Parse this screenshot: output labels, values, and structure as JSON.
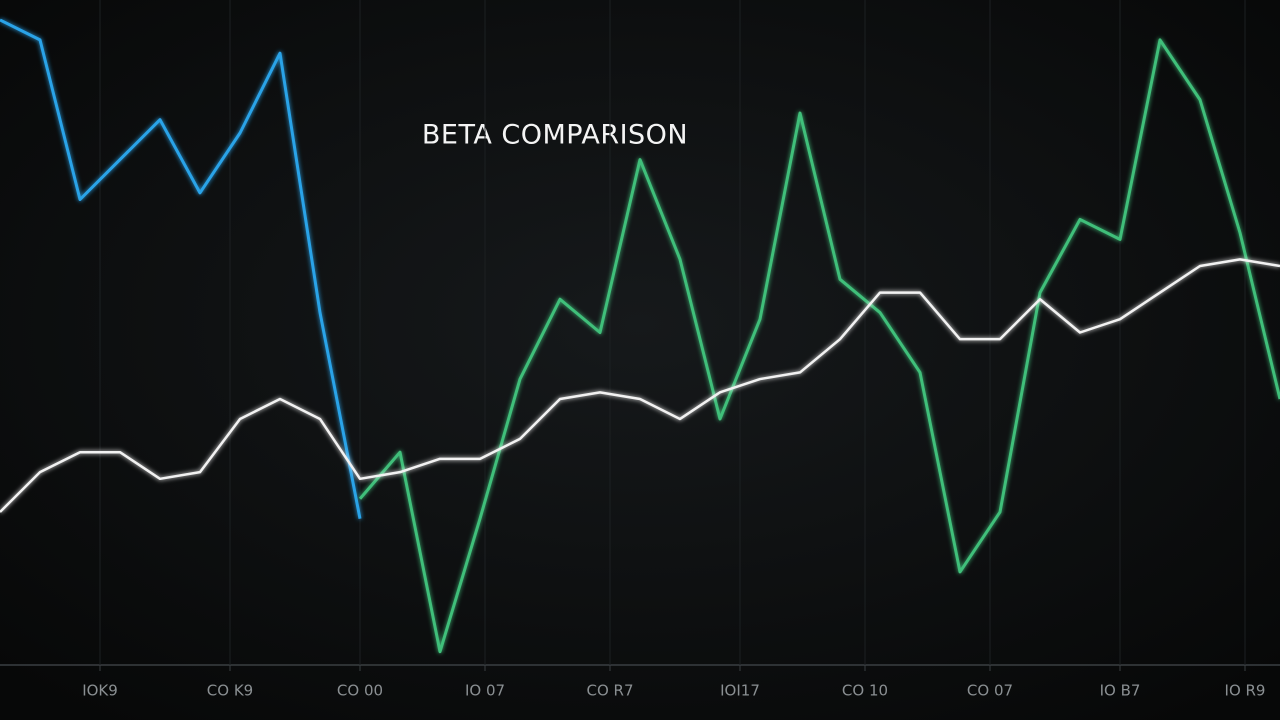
{
  "chart_data": {
    "type": "line",
    "title": "BETA COMPARISON",
    "x": [
      0,
      1,
      2,
      3,
      4,
      5,
      6,
      7,
      8,
      9,
      10,
      11,
      12,
      13,
      14,
      15,
      16,
      17,
      18,
      19,
      20,
      21,
      22,
      23,
      24,
      25,
      26,
      27,
      28,
      29,
      30,
      31,
      32
    ],
    "xlim": [
      0,
      32
    ],
    "xticks": [
      {
        "value": 2.5,
        "label": "IOK9"
      },
      {
        "value": 5.75,
        "label": "CO K9"
      },
      {
        "value": 9,
        "label": "CO 00"
      },
      {
        "value": 12.125,
        "label": "IO 07"
      },
      {
        "value": 15.25,
        "label": "CO R7"
      },
      {
        "value": 18.5,
        "label": "IOI17"
      },
      {
        "value": 21.625,
        "label": "CO 10"
      },
      {
        "value": 24.75,
        "label": "CO 07"
      },
      {
        "value": 28,
        "label": "IO B7"
      },
      {
        "value": 31.125,
        "label": "IO R9"
      }
    ],
    "ylim": [
      0,
      100
    ],
    "grid": true,
    "series": [
      {
        "color": "#29a3e8",
        "values": [
          97,
          94,
          70,
          76,
          82,
          71,
          80,
          92,
          53,
          22,
          null,
          null,
          null,
          null,
          null,
          null,
          null,
          null,
          null,
          null,
          null,
          null,
          null,
          null,
          null,
          null,
          null,
          null,
          null,
          null,
          null,
          null,
          null
        ]
      },
      {
        "color": "#3fbf7a",
        "values": [
          null,
          null,
          null,
          null,
          null,
          null,
          null,
          null,
          null,
          25,
          32,
          2,
          22,
          43,
          55,
          50,
          76,
          61,
          37,
          52,
          83,
          58,
          53,
          44,
          14,
          23,
          56,
          67,
          64,
          94,
          85,
          65,
          40
        ]
      },
      {
        "color": "#f2f2f2",
        "values": [
          23,
          29,
          32,
          32,
          28,
          29,
          37,
          40,
          37,
          28,
          29,
          31,
          31,
          34,
          40,
          41,
          40,
          37,
          41,
          43,
          44,
          49,
          56,
          56,
          49,
          49,
          55,
          50,
          52,
          56,
          60,
          61,
          60
        ]
      }
    ]
  }
}
